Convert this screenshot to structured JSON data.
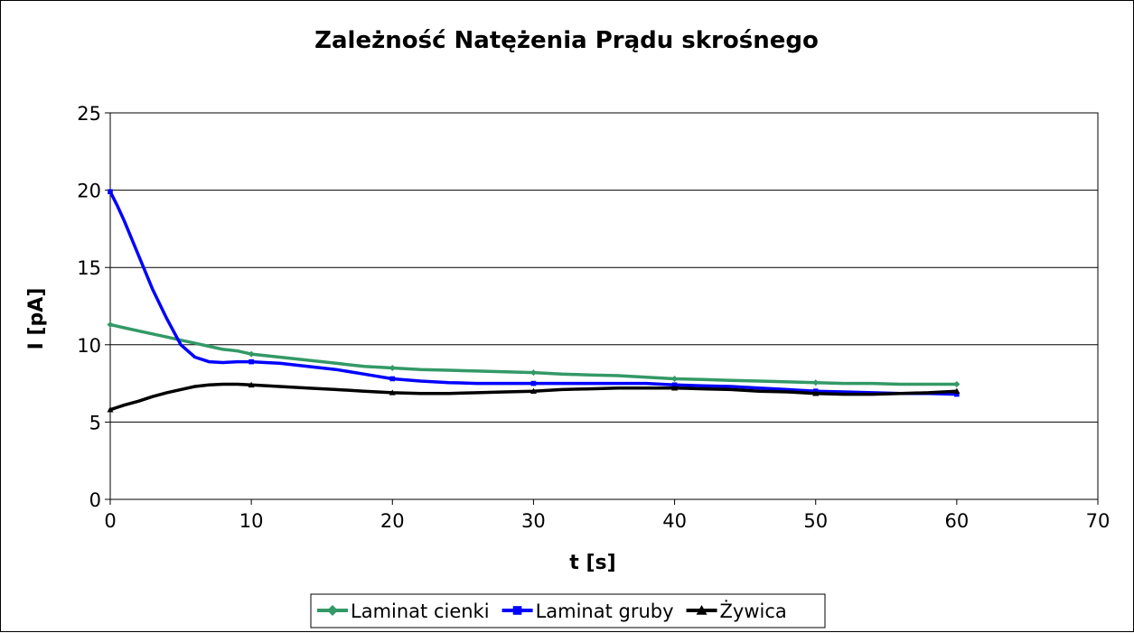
{
  "chart_data": {
    "type": "line",
    "title": "Zależność Natężenia Prądu skrośnego",
    "xlabel": "t [s]",
    "ylabel": "I [pA]",
    "xlim": [
      0,
      70
    ],
    "ylim": [
      0,
      25
    ],
    "x_ticks": [
      0,
      10,
      20,
      30,
      40,
      50,
      60,
      70
    ],
    "y_ticks": [
      0,
      5,
      10,
      15,
      20,
      25
    ],
    "x_tick_labels": [
      "0",
      "10",
      "20",
      "30",
      "40",
      "50",
      "60",
      "70"
    ],
    "y_tick_labels": [
      "0",
      "5",
      "10",
      "15",
      "20",
      "25"
    ],
    "grid": "horizontal",
    "legend_position": "bottom",
    "series": [
      {
        "name": "Laminat cienki",
        "color": "#339966",
        "marker": "diamond",
        "x": [
          0,
          1,
          2,
          3,
          4,
          5,
          6,
          7,
          8,
          9,
          10,
          12,
          14,
          16,
          18,
          20,
          22,
          24,
          26,
          28,
          30,
          32,
          34,
          36,
          38,
          40,
          42,
          44,
          46,
          48,
          50,
          52,
          54,
          56,
          58,
          60
        ],
        "values": [
          11.3,
          11.1,
          10.9,
          10.7,
          10.5,
          10.3,
          10.1,
          9.9,
          9.7,
          9.6,
          9.4,
          9.2,
          9.0,
          8.8,
          8.6,
          8.5,
          8.4,
          8.35,
          8.3,
          8.25,
          8.2,
          8.1,
          8.05,
          8.0,
          7.9,
          7.8,
          7.75,
          7.7,
          7.65,
          7.6,
          7.55,
          7.5,
          7.5,
          7.45,
          7.45,
          7.45
        ]
      },
      {
        "name": "Laminat gruby",
        "color": "#0000ff",
        "marker": "square",
        "x": [
          0,
          0.5,
          1,
          2,
          3,
          4,
          5,
          6,
          7,
          8,
          9,
          10,
          11,
          12,
          14,
          16,
          18,
          20,
          22,
          24,
          26,
          28,
          30,
          32,
          34,
          36,
          38,
          40,
          42,
          44,
          46,
          48,
          50,
          52,
          54,
          56,
          58,
          60
        ],
        "values": [
          19.9,
          19.0,
          18.0,
          15.8,
          13.6,
          11.7,
          10.0,
          9.2,
          8.9,
          8.85,
          8.9,
          8.9,
          8.85,
          8.8,
          8.6,
          8.4,
          8.1,
          7.8,
          7.65,
          7.55,
          7.5,
          7.5,
          7.5,
          7.5,
          7.5,
          7.5,
          7.5,
          7.4,
          7.35,
          7.3,
          7.2,
          7.1,
          7.0,
          6.95,
          6.9,
          6.85,
          6.85,
          6.8
        ]
      },
      {
        "name": "Żywica",
        "color": "#000000",
        "marker": "triangle",
        "x": [
          0,
          1,
          2,
          3,
          4,
          5,
          6,
          7,
          8,
          9,
          10,
          12,
          14,
          16,
          18,
          20,
          22,
          24,
          26,
          28,
          30,
          32,
          34,
          36,
          38,
          40,
          42,
          44,
          46,
          48,
          50,
          52,
          54,
          56,
          58,
          60
        ],
        "values": [
          5.8,
          6.1,
          6.35,
          6.65,
          6.9,
          7.1,
          7.3,
          7.4,
          7.45,
          7.45,
          7.4,
          7.3,
          7.2,
          7.1,
          7.0,
          6.9,
          6.85,
          6.85,
          6.9,
          6.95,
          7.0,
          7.1,
          7.15,
          7.2,
          7.2,
          7.2,
          7.15,
          7.1,
          7.0,
          6.95,
          6.85,
          6.8,
          6.8,
          6.85,
          6.9,
          7.0
        ]
      }
    ]
  }
}
